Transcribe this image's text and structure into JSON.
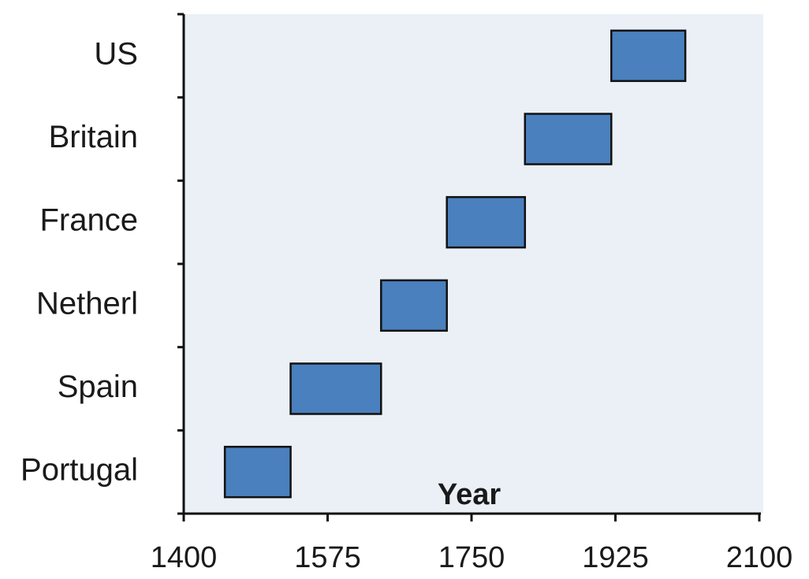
{
  "chart_data": {
    "type": "range-bar",
    "categories": [
      "Portugal",
      "Spain",
      "Netherl",
      "France",
      "Britain",
      "US"
    ],
    "starts": [
      1450,
      1530,
      1640,
      1720,
      1815,
      1920
    ],
    "ends": [
      1530,
      1640,
      1720,
      1815,
      1920,
      2010
    ],
    "color": "#4a80bd",
    "xlabel": "Year",
    "xlim": [
      1400,
      2100
    ],
    "xticks": [
      1400,
      1575,
      1750,
      1925,
      2100
    ]
  }
}
